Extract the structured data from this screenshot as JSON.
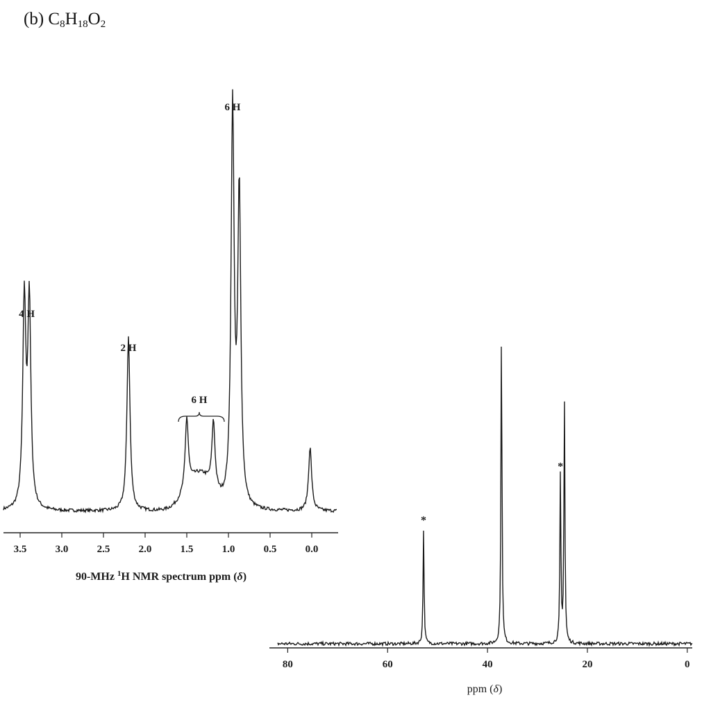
{
  "problem": {
    "label": "(b) C",
    "c": "8",
    "h_letter": "H",
    "h": "18",
    "o_letter": "O",
    "o": "2"
  },
  "chart_data": [
    {
      "type": "line",
      "xlabel": "90-MHz ¹H NMR spectrum ppm (δ)",
      "xlabel_parts": [
        "90-MHz ",
        "1",
        "H NMR spectrum ppm (",
        "δ",
        ")"
      ],
      "xlim": [
        3.7,
        -0.3
      ],
      "ticks": [
        3.5,
        3.0,
        2.5,
        2.0,
        1.5,
        1.0,
        0.5,
        0.0
      ],
      "tick_labels": [
        "3.5",
        "3.0",
        "2.5",
        "2.0",
        "1.5",
        "1.0",
        "0.5",
        "0.0"
      ],
      "grid": false,
      "peaks": [
        {
          "ppm": 3.45,
          "height": 0.52
        },
        {
          "ppm": 3.39,
          "height": 0.52
        },
        {
          "ppm": 2.2,
          "height": 0.44
        },
        {
          "ppm": 1.5,
          "height": 0.18
        },
        {
          "ppm": 1.18,
          "height": 0.17
        },
        {
          "ppm": 0.95,
          "height": 1.0
        },
        {
          "ppm": 0.87,
          "height": 0.79
        },
        {
          "ppm": 0.02,
          "height": 0.16
        }
      ],
      "integrations": [
        {
          "label": "4 H",
          "ppm": 3.42
        },
        {
          "label": "2 H",
          "ppm": 2.2
        },
        {
          "label": "6 H",
          "ppm": 1.35,
          "range": [
            1.6,
            1.05
          ]
        },
        {
          "label": "6 H",
          "ppm": 0.95
        }
      ]
    },
    {
      "type": "line",
      "xlabel": "ppm (δ)",
      "xlabel_parts": [
        "ppm (",
        "δ",
        ")"
      ],
      "xlim": [
        82,
        -1
      ],
      "ticks": [
        80,
        60,
        40,
        20,
        0
      ],
      "tick_labels": [
        "80",
        "60",
        "40",
        "20",
        "0"
      ],
      "grid": false,
      "peaks": [
        {
          "ppm": 52.8,
          "height": 0.36,
          "marker": "*"
        },
        {
          "ppm": 37.2,
          "height": 1.0
        },
        {
          "ppm": 25.4,
          "height": 0.53,
          "marker": "*"
        },
        {
          "ppm": 24.6,
          "height": 0.77
        }
      ]
    }
  ]
}
